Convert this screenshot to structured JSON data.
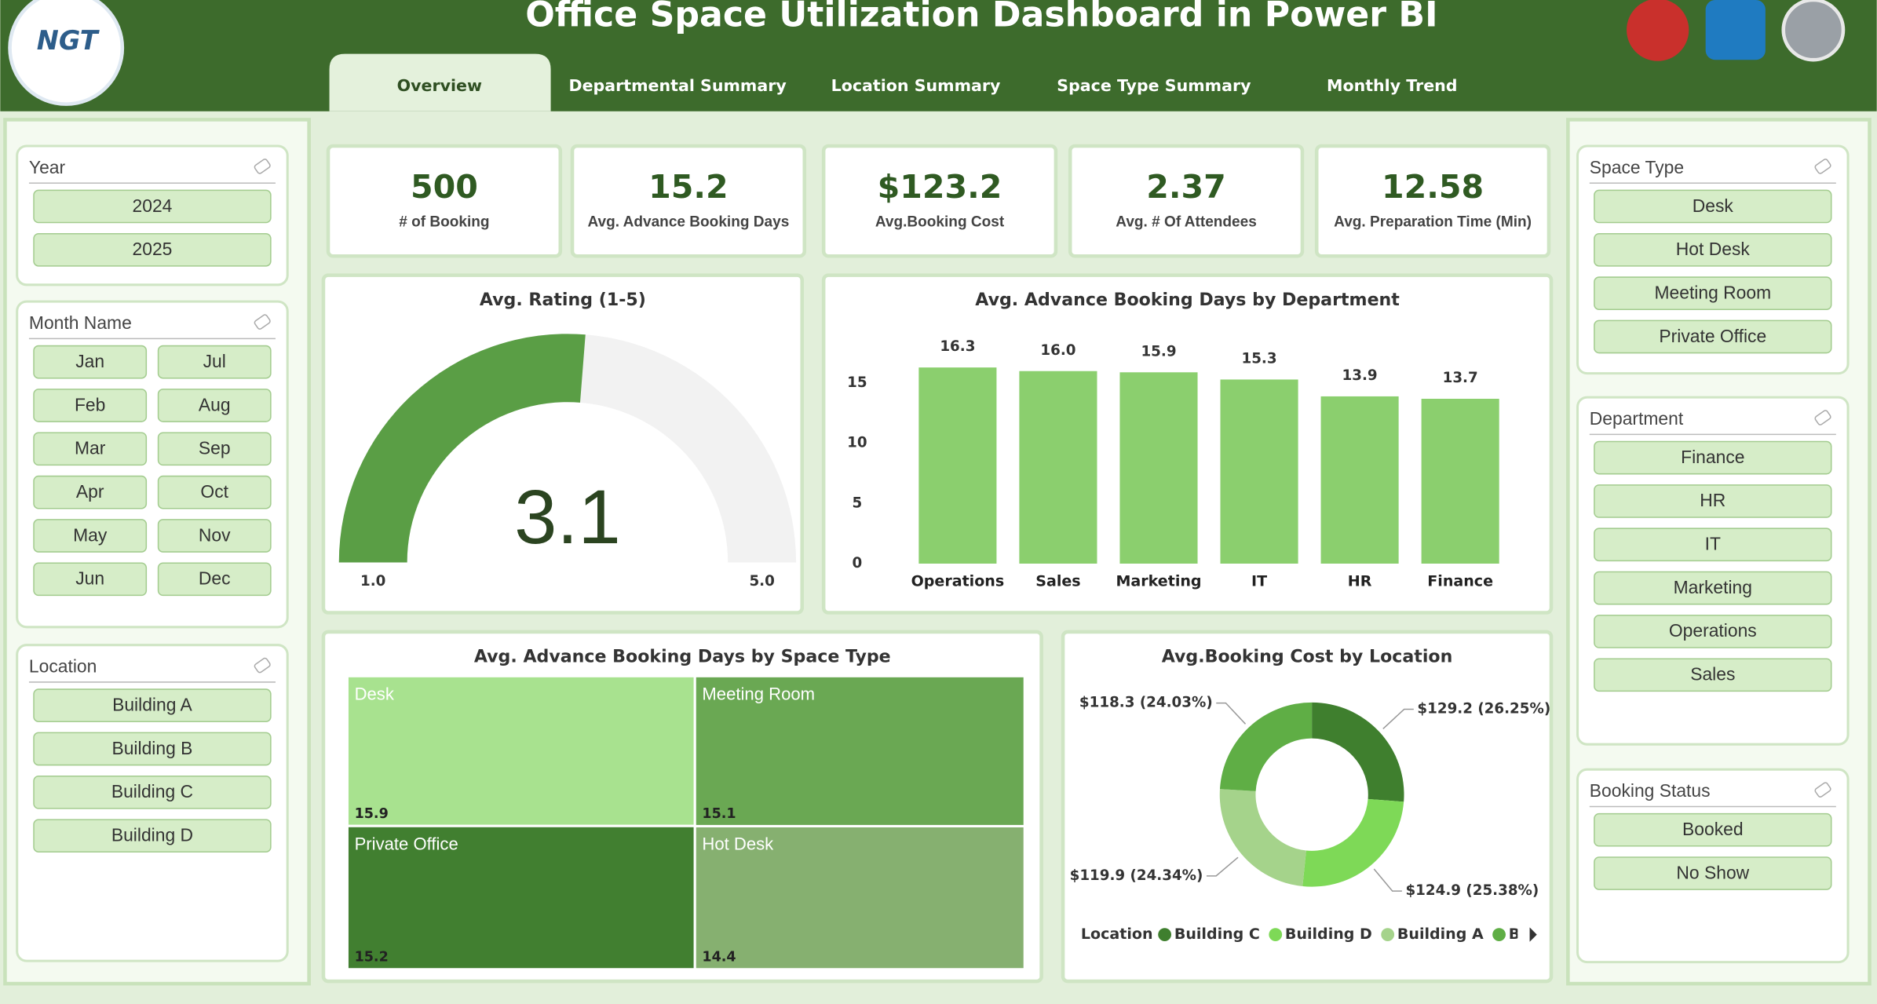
{
  "header": {
    "title": "Office Space Utilization Dashboard in Power BI",
    "logo": "NGT",
    "tabs": [
      "Overview",
      "Departmental Summary",
      "Location Summary",
      "Space Type Summary",
      "Monthly Trend"
    ]
  },
  "slicers": [
    {
      "title": "Year",
      "items": [
        "2024",
        "2025"
      ]
    },
    {
      "title": "Month Name",
      "items": [
        "Jan",
        "Feb",
        "Mar",
        "Apr",
        "May",
        "Jun",
        "Jul",
        "Aug",
        "Sep",
        "Oct",
        "Nov",
        "Dec"
      ]
    },
    {
      "title": "Location",
      "items": [
        "Building A",
        "Building B",
        "Building C",
        "Building D"
      ]
    },
    {
      "title": "Space Type",
      "items": [
        "Desk",
        "Hot Desk",
        "Meeting Room",
        "Private Office"
      ]
    },
    {
      "title": "Department",
      "items": [
        "Finance",
        "HR",
        "IT",
        "Marketing",
        "Operations",
        "Sales"
      ]
    },
    {
      "title": "Booking Status",
      "items": [
        "Booked",
        "No Show"
      ]
    }
  ],
  "kpis": [
    {
      "value": "500",
      "label": "# of Booking"
    },
    {
      "value": "15.2",
      "label": "Avg. Advance Booking Days"
    },
    {
      "value": "$123.2",
      "label": "Avg.Booking Cost"
    },
    {
      "value": "2.37",
      "label": "Avg. # Of Attendees"
    },
    {
      "value": "12.58",
      "label": "Avg. Preparation Time (Min)"
    }
  ],
  "chart_data": [
    {
      "type": "gauge",
      "title": "Avg. Rating (1-5)",
      "value": 3.1,
      "ylim": [
        1,
        5
      ],
      "yticks": [
        {
          "value": 1,
          "label": "1.0"
        },
        {
          "value": 5,
          "label": "5.0"
        }
      ],
      "color": "#5a9e45",
      "track_color": "#f2f2f2"
    },
    {
      "type": "bar",
      "title": "Avg. Advance Booking Days by Department",
      "categories": [
        "Operations",
        "Sales",
        "Marketing",
        "IT",
        "HR",
        "Finance"
      ],
      "values": [
        16.3,
        16.0,
        15.9,
        15.3,
        13.9,
        13.7
      ],
      "value_labels": [
        "16.3",
        "16.0",
        "15.9",
        "15.3",
        "13.9",
        "13.7"
      ],
      "color": "#8bcf6e",
      "ylim": [
        0,
        18
      ],
      "yticks": [
        0,
        5,
        10,
        15
      ],
      "grid": false
    },
    {
      "type": "treemap",
      "title": "Avg. Advance Booking Days by Space Type",
      "categories": [
        "Desk",
        "Meeting Room",
        "Private Office",
        "Hot Desk"
      ],
      "values": [
        15.9,
        15.1,
        15.2,
        14.4
      ],
      "colors": [
        "#a8e28f",
        "#6aa853",
        "#417f30",
        "#86b070"
      ]
    },
    {
      "type": "pie",
      "donut": true,
      "title": "Avg.Booking Cost by Location",
      "legend_title": "Location",
      "categories": [
        "Building C",
        "Building D",
        "Building A",
        "Building B"
      ],
      "values": [
        129.2,
        124.9,
        119.9,
        118.3
      ],
      "value_labels": [
        "$129.2 (26.25%)",
        "$124.9 (25.38%)",
        "$119.9 (24.34%)",
        "$118.3 (24.03%)"
      ],
      "colors": [
        "#3f7f2e",
        "#7ed957",
        "#a5d38b",
        "#5fae45"
      ]
    }
  ]
}
